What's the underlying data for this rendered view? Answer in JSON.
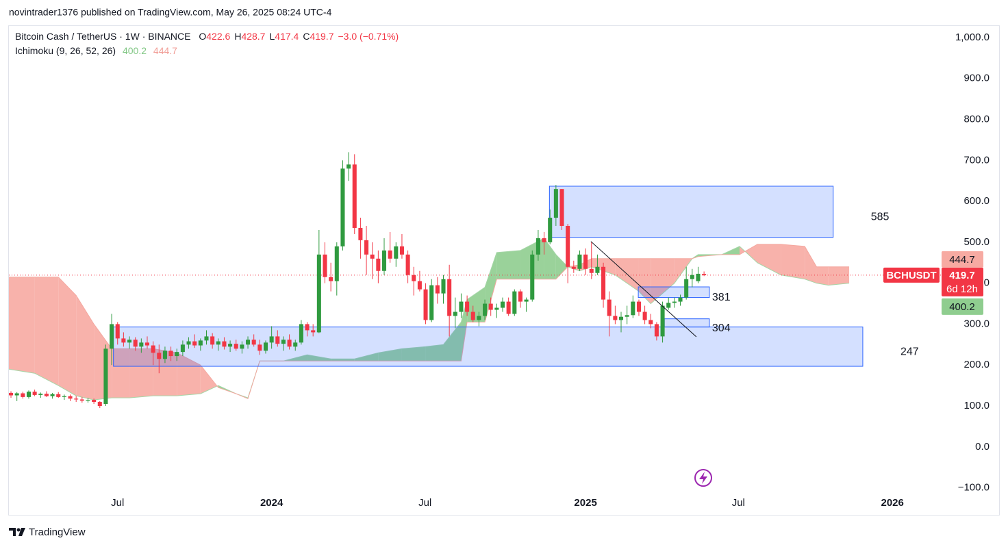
{
  "header": {
    "published": "novintrader1376 published on TradingView.com, May 26, 2025 08:24 UTC-4",
    "brand": "TradingView"
  },
  "chart_data": {
    "type": "candlestick",
    "symbol": "Bitcoin Cash / TetherUS · 1W · BINANCE",
    "ticker": "BCHUSDT",
    "countdown": "6d 12h",
    "ohlc_keys": [
      "O",
      "H",
      "L",
      "C"
    ],
    "change": "−3.0 (−0.71%)",
    "up_color": "#2f9a3f",
    "down_color": "#f23645",
    "xlim": [
      -0.35,
      157.1
    ],
    "ylim": [
      -109,
      1030
    ],
    "grid": false,
    "xticks": [
      {
        "value": 18.0,
        "label": "Jul"
      },
      {
        "value": 44.0,
        "label": "2024"
      },
      {
        "value": 69.9,
        "label": "Jul"
      },
      {
        "value": 97.0,
        "label": "2025"
      },
      {
        "value": 122.8,
        "label": "Jul"
      },
      {
        "value": 148.8,
        "label": "2026"
      }
    ],
    "yticks": [
      {
        "value": -100,
        "label": "−100.0"
      },
      {
        "value": 0,
        "label": "0.0"
      },
      {
        "value": 100,
        "label": "100.0"
      },
      {
        "value": 200,
        "label": "200.0"
      },
      {
        "value": 300,
        "label": "300.0"
      },
      {
        "value": 400,
        "label": "400.0"
      },
      {
        "value": 500,
        "label": "500.0"
      },
      {
        "value": 600,
        "label": "600.0"
      },
      {
        "value": 700,
        "label": "700.0"
      },
      {
        "value": 800,
        "label": "800.0"
      },
      {
        "value": 900,
        "label": "900.0"
      },
      {
        "value": 1000,
        "label": "1,000.0"
      }
    ],
    "candles": [
      [
        132,
        136,
        120,
        126
      ],
      [
        126,
        134,
        112,
        131
      ],
      [
        131,
        135,
        118,
        122
      ],
      [
        122,
        138,
        118,
        135
      ],
      [
        135,
        140,
        124,
        127
      ],
      [
        127,
        133,
        120,
        130
      ],
      [
        130,
        136,
        122,
        124
      ],
      [
        124,
        132,
        118,
        129
      ],
      [
        129,
        134,
        120,
        122
      ],
      [
        122,
        128,
        115,
        124
      ],
      [
        124,
        128,
        112,
        118
      ],
      [
        118,
        124,
        110,
        116
      ],
      [
        116,
        122,
        108,
        113
      ],
      [
        113,
        120,
        108,
        115
      ],
      [
        115,
        118,
        105,
        110
      ],
      [
        110,
        112,
        95,
        100
      ],
      [
        105,
        250,
        100,
        240
      ],
      [
        240,
        325,
        200,
        300
      ],
      [
        300,
        305,
        250,
        265
      ],
      [
        265,
        280,
        245,
        255
      ],
      [
        255,
        270,
        240,
        262
      ],
      [
        262,
        268,
        235,
        245
      ],
      [
        245,
        265,
        230,
        255
      ],
      [
        255,
        270,
        240,
        248
      ],
      [
        248,
        258,
        200,
        230
      ],
      [
        230,
        250,
        180,
        215
      ],
      [
        215,
        245,
        205,
        235
      ],
      [
        235,
        245,
        210,
        222
      ],
      [
        222,
        240,
        210,
        232
      ],
      [
        232,
        260,
        222,
        250
      ],
      [
        250,
        268,
        240,
        258
      ],
      [
        258,
        275,
        242,
        248
      ],
      [
        248,
        265,
        235,
        260
      ],
      [
        260,
        285,
        250,
        270
      ],
      [
        270,
        278,
        240,
        250
      ],
      [
        250,
        265,
        235,
        258
      ],
      [
        258,
        268,
        238,
        245
      ],
      [
        245,
        260,
        232,
        252
      ],
      [
        252,
        262,
        235,
        240
      ],
      [
        240,
        258,
        228,
        250
      ],
      [
        250,
        270,
        240,
        262
      ],
      [
        262,
        275,
        245,
        250
      ],
      [
        250,
        262,
        225,
        235
      ],
      [
        235,
        260,
        228,
        255
      ],
      [
        255,
        295,
        240,
        270
      ],
      [
        270,
        285,
        245,
        252
      ],
      [
        252,
        270,
        235,
        262
      ],
      [
        262,
        275,
        238,
        245
      ],
      [
        245,
        262,
        235,
        255
      ],
      [
        255,
        310,
        250,
        300
      ],
      [
        300,
        305,
        270,
        285
      ],
      [
        285,
        300,
        270,
        280
      ],
      [
        280,
        530,
        278,
        470
      ],
      [
        470,
        500,
        400,
        415
      ],
      [
        415,
        450,
        380,
        405
      ],
      [
        405,
        500,
        370,
        490
      ],
      [
        490,
        700,
        480,
        680
      ],
      [
        680,
        720,
        650,
        690
      ],
      [
        690,
        715,
        520,
        535
      ],
      [
        535,
        560,
        460,
        505
      ],
      [
        505,
        540,
        420,
        470
      ],
      [
        470,
        500,
        410,
        460
      ],
      [
        460,
        480,
        400,
        430
      ],
      [
        430,
        510,
        420,
        480
      ],
      [
        480,
        525,
        450,
        460
      ],
      [
        460,
        500,
        440,
        490
      ],
      [
        490,
        520,
        460,
        470
      ],
      [
        470,
        480,
        400,
        420
      ],
      [
        420,
        440,
        370,
        405
      ],
      [
        405,
        430,
        380,
        385
      ],
      [
        385,
        400,
        300,
        310
      ],
      [
        310,
        410,
        305,
        395
      ],
      [
        395,
        415,
        350,
        375
      ],
      [
        375,
        420,
        350,
        410
      ],
      [
        410,
        445,
        270,
        320
      ],
      [
        320,
        365,
        290,
        330
      ],
      [
        330,
        375,
        315,
        355
      ],
      [
        355,
        370,
        320,
        330
      ],
      [
        330,
        345,
        305,
        310
      ],
      [
        310,
        330,
        295,
        320
      ],
      [
        320,
        360,
        310,
        350
      ],
      [
        350,
        365,
        320,
        335
      ],
      [
        335,
        350,
        315,
        340
      ],
      [
        340,
        365,
        330,
        355
      ],
      [
        355,
        365,
        320,
        325
      ],
      [
        325,
        385,
        320,
        380
      ],
      [
        380,
        385,
        340,
        355
      ],
      [
        355,
        365,
        330,
        360
      ],
      [
        360,
        480,
        355,
        470
      ],
      [
        470,
        530,
        455,
        510
      ],
      [
        510,
        525,
        470,
        500
      ],
      [
        500,
        580,
        495,
        560
      ],
      [
        560,
        640,
        540,
        630
      ],
      [
        630,
        630,
        530,
        540
      ],
      [
        540,
        545,
        400,
        440
      ],
      [
        440,
        455,
        425,
        435
      ],
      [
        435,
        480,
        430,
        470
      ],
      [
        470,
        485,
        420,
        435
      ],
      [
        435,
        500,
        410,
        425
      ],
      [
        425,
        470,
        420,
        440
      ],
      [
        440,
        450,
        340,
        360
      ],
      [
        360,
        380,
        270,
        320
      ],
      [
        320,
        345,
        300,
        310
      ],
      [
        310,
        330,
        280,
        318
      ],
      [
        318,
        345,
        300,
        322
      ],
      [
        322,
        370,
        315,
        355
      ],
      [
        355,
        360,
        320,
        330
      ],
      [
        330,
        345,
        300,
        310
      ],
      [
        310,
        325,
        290,
        300
      ],
      [
        300,
        305,
        260,
        270
      ],
      [
        270,
        355,
        255,
        345
      ],
      [
        340,
        365,
        335,
        352
      ],
      [
        352,
        365,
        340,
        355
      ],
      [
        355,
        372,
        345,
        365
      ],
      [
        365,
        440,
        360,
        410
      ],
      [
        410,
        435,
        390,
        420
      ],
      [
        405,
        440,
        400,
        423
      ],
      [
        422.6,
        428.7,
        417.4,
        419.7
      ]
    ],
    "ichimoku": {
      "name": "Ichimoku (9, 26, 52, 26)",
      "span_a_color": "#8fcd8f",
      "span_b_color": "#f7aaa2",
      "span_a_last": 400.2,
      "span_b_last": 444.7,
      "x": [
        -0.35,
        4,
        8,
        11,
        14,
        17,
        20,
        24,
        28,
        32,
        35,
        38,
        40,
        42,
        46,
        50,
        54,
        58,
        62,
        66,
        70,
        73,
        76,
        77,
        80,
        82,
        86,
        90,
        92,
        94,
        96,
        98,
        102,
        106,
        108,
        112,
        115,
        116,
        120,
        123,
        126,
        130,
        134,
        136,
        138,
        141.5
      ],
      "span_a": [
        190,
        180,
        150,
        125,
        115,
        120,
        120,
        125,
        125,
        130,
        150,
        130,
        120,
        210,
        210,
        225,
        215,
        215,
        230,
        240,
        245,
        250,
        305,
        360,
        390,
        475,
        480,
        510,
        470,
        440,
        430,
        440,
        420,
        380,
        350,
        400,
        460,
        470,
        470,
        490,
        450,
        420,
        410,
        400,
        395,
        400
      ],
      "span_b": [
        415,
        415,
        415,
        370,
        300,
        240,
        240,
        240,
        230,
        200,
        145,
        130,
        118,
        210,
        210,
        210,
        210,
        210,
        210,
        210,
        210,
        210,
        210,
        305,
        305,
        410,
        410,
        410,
        410,
        440,
        445,
        460,
        460,
        460,
        460,
        460,
        460,
        465,
        470,
        470,
        495,
        495,
        490,
        440,
        440,
        440
      ]
    },
    "zones": [
      {
        "x": [
          90.9,
          138.8
        ],
        "y": [
          512,
          637
        ],
        "label": 585
      },
      {
        "x": [
          105.9,
          117.9
        ],
        "y": [
          365,
          391
        ],
        "label": 381
      },
      {
        "x": [
          110.3,
          117.9
        ],
        "y": [
          293,
          313
        ],
        "label": 304
      },
      {
        "x": [
          17.3,
          143.8
        ],
        "y": [
          197,
          293
        ],
        "label": 247
      }
    ],
    "trendline": {
      "x": [
        97.9,
        115.7
      ],
      "y": [
        502,
        269
      ]
    }
  }
}
